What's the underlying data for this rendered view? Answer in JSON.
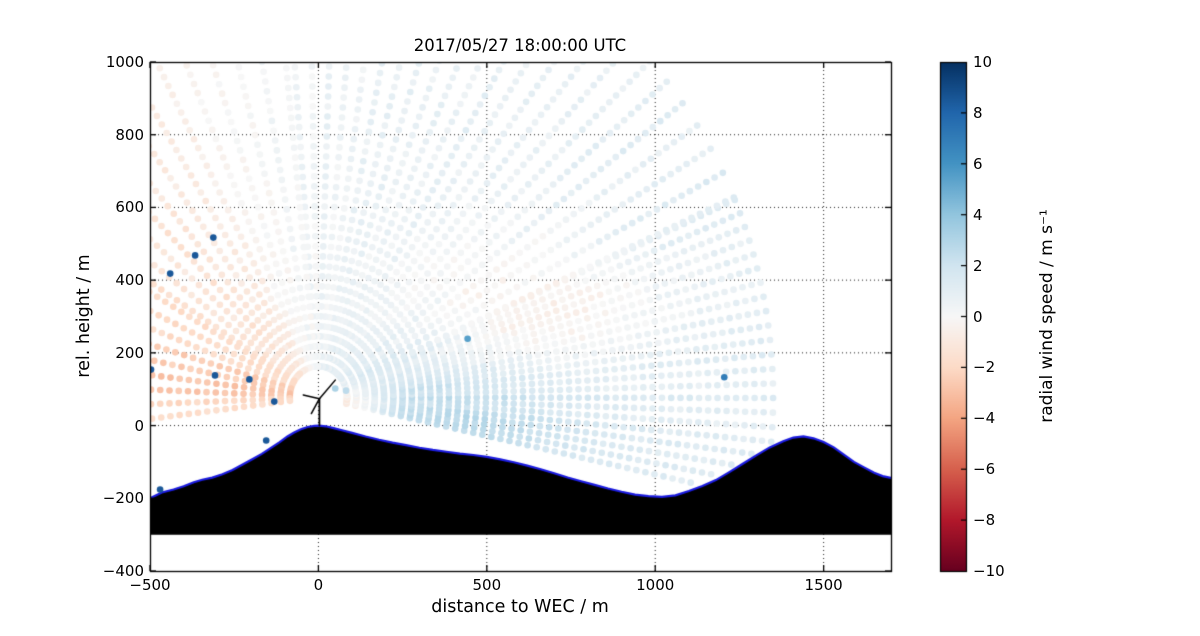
{
  "chart_data": {
    "type": "scatter",
    "title": "2017/05/27 18:00:00 UTC",
    "xlabel": "distance to WEC / m",
    "ylabel": "rel. height / m",
    "colorbar_label": "radial wind speed / m s⁻¹",
    "xlim": [
      -500,
      1700
    ],
    "ylim": [
      -400,
      1000
    ],
    "xticks": [
      -500,
      0,
      500,
      1000,
      1500
    ],
    "yticks": [
      -400,
      -200,
      0,
      200,
      400,
      600,
      800,
      1000
    ],
    "grid_x": [
      0,
      500,
      1000,
      1500
    ],
    "grid_y": [
      -200,
      0,
      200,
      400,
      600,
      800
    ],
    "grid_on": true,
    "clim": [
      -10,
      10
    ],
    "colorbar_ticks": [
      10,
      8,
      6,
      4,
      2,
      0,
      -2,
      -4,
      -6,
      -8,
      -10
    ],
    "colormap_stops": [
      [
        0.0,
        "#67001f"
      ],
      [
        0.1,
        "#b2182b"
      ],
      [
        0.2,
        "#d6604d"
      ],
      [
        0.3,
        "#f4a582"
      ],
      [
        0.4,
        "#fddbc7"
      ],
      [
        0.5,
        "#f7f7f7"
      ],
      [
        0.6,
        "#d1e5f0"
      ],
      [
        0.7,
        "#92c5de"
      ],
      [
        0.8,
        "#4393c3"
      ],
      [
        0.9,
        "#2166ac"
      ],
      [
        1.0,
        "#053061"
      ]
    ],
    "scan": {
      "origin": [
        0,
        78
      ],
      "range_start": 85,
      "range_step": 27.5,
      "range_max": 1375,
      "beam_segments": [
        {
          "from": -12,
          "to": 24,
          "step": 1.7
        },
        {
          "from": 24,
          "to": 96,
          "step": 3.2
        },
        {
          "from": 96,
          "to": 150,
          "step": 4.3
        },
        {
          "from": 150,
          "to": 187,
          "step": 4.6
        }
      ]
    },
    "wind_field": {
      "right_amp": 1.2,
      "left_amp": 2.0,
      "updraft_amp": 0.5,
      "horizon_orange": {
        "center_deg": 173,
        "sigma_deg": 9,
        "amp": -0.8
      },
      "blobs": [
        {
          "x": 640,
          "y": 330,
          "sx": 280,
          "sy": 150,
          "amp": -1.6
        },
        {
          "x": 430,
          "y": 20,
          "sx": 260,
          "sy": 110,
          "amp": 1.6
        },
        {
          "x": 65,
          "y": 55,
          "sx": 75,
          "sy": 40,
          "amp": -2.8
        }
      ],
      "beam_noise": 0.25,
      "dot_noise": 0.3
    },
    "marker_radius_px": 3.3,
    "outliers": [
      {
        "x": -497,
        "y": 154,
        "v": 8.5
      },
      {
        "x": -307,
        "y": 138,
        "v": 8.5
      },
      {
        "x": -205,
        "y": 127,
        "v": 8.5
      },
      {
        "x": -131,
        "y": 66,
        "v": 8.5
      },
      {
        "x": -155,
        "y": -41,
        "v": 8.5
      },
      {
        "x": -470,
        "y": -176,
        "v": 8.5
      },
      {
        "x": -440,
        "y": 418,
        "v": 8.5
      },
      {
        "x": -366,
        "y": 468,
        "v": 8.5
      },
      {
        "x": -312,
        "y": 517,
        "v": 8.5
      },
      {
        "x": 50,
        "y": 102,
        "v": 3.2
      },
      {
        "x": 82,
        "y": 96,
        "v": 2.6
      },
      {
        "x": 443,
        "y": 239,
        "v": 5.5
      },
      {
        "x": 1205,
        "y": 133,
        "v": 7.0
      }
    ],
    "terrain": {
      "base": -300,
      "fill_color": "#000000",
      "line_color": "#1b1be0",
      "points": [
        [
          -500,
          -200
        ],
        [
          -465,
          -184
        ],
        [
          -430,
          -176
        ],
        [
          -400,
          -167
        ],
        [
          -370,
          -156
        ],
        [
          -345,
          -149
        ],
        [
          -315,
          -143
        ],
        [
          -285,
          -134
        ],
        [
          -255,
          -122
        ],
        [
          -225,
          -107
        ],
        [
          -195,
          -92
        ],
        [
          -168,
          -78
        ],
        [
          -142,
          -62
        ],
        [
          -116,
          -46
        ],
        [
          -92,
          -30
        ],
        [
          -72,
          -19
        ],
        [
          -52,
          -10
        ],
        [
          -32,
          -4
        ],
        [
          -12,
          -1
        ],
        [
          3,
          0
        ],
        [
          22,
          -2
        ],
        [
          45,
          -7
        ],
        [
          70,
          -13
        ],
        [
          100,
          -20
        ],
        [
          140,
          -30
        ],
        [
          180,
          -39
        ],
        [
          220,
          -47
        ],
        [
          260,
          -54
        ],
        [
          300,
          -61
        ],
        [
          340,
          -67
        ],
        [
          380,
          -72
        ],
        [
          420,
          -77
        ],
        [
          460,
          -81
        ],
        [
          500,
          -86
        ],
        [
          540,
          -93
        ],
        [
          580,
          -101
        ],
        [
          620,
          -110
        ],
        [
          660,
          -120
        ],
        [
          700,
          -131
        ],
        [
          740,
          -143
        ],
        [
          780,
          -153
        ],
        [
          820,
          -163
        ],
        [
          860,
          -173
        ],
        [
          900,
          -182
        ],
        [
          940,
          -190
        ],
        [
          980,
          -194
        ],
        [
          1020,
          -196
        ],
        [
          1060,
          -192
        ],
        [
          1100,
          -180
        ],
        [
          1140,
          -166
        ],
        [
          1180,
          -150
        ],
        [
          1220,
          -128
        ],
        [
          1260,
          -105
        ],
        [
          1300,
          -82
        ],
        [
          1340,
          -60
        ],
        [
          1380,
          -43
        ],
        [
          1410,
          -33
        ],
        [
          1440,
          -30
        ],
        [
          1470,
          -35
        ],
        [
          1500,
          -45
        ],
        [
          1530,
          -60
        ],
        [
          1560,
          -80
        ],
        [
          1590,
          -100
        ],
        [
          1620,
          -115
        ],
        [
          1650,
          -130
        ],
        [
          1675,
          -139
        ],
        [
          1700,
          -144
        ]
      ]
    },
    "turbine": {
      "tower": [
        [
          3,
          0
        ],
        [
          3,
          74
        ]
      ],
      "blades": [
        [
          [
            3,
            74
          ],
          [
            50,
            125
          ]
        ],
        [
          [
            3,
            74
          ],
          [
            -45,
            84
          ]
        ],
        [
          [
            3,
            74
          ],
          [
            -21,
            33
          ]
        ]
      ]
    }
  }
}
